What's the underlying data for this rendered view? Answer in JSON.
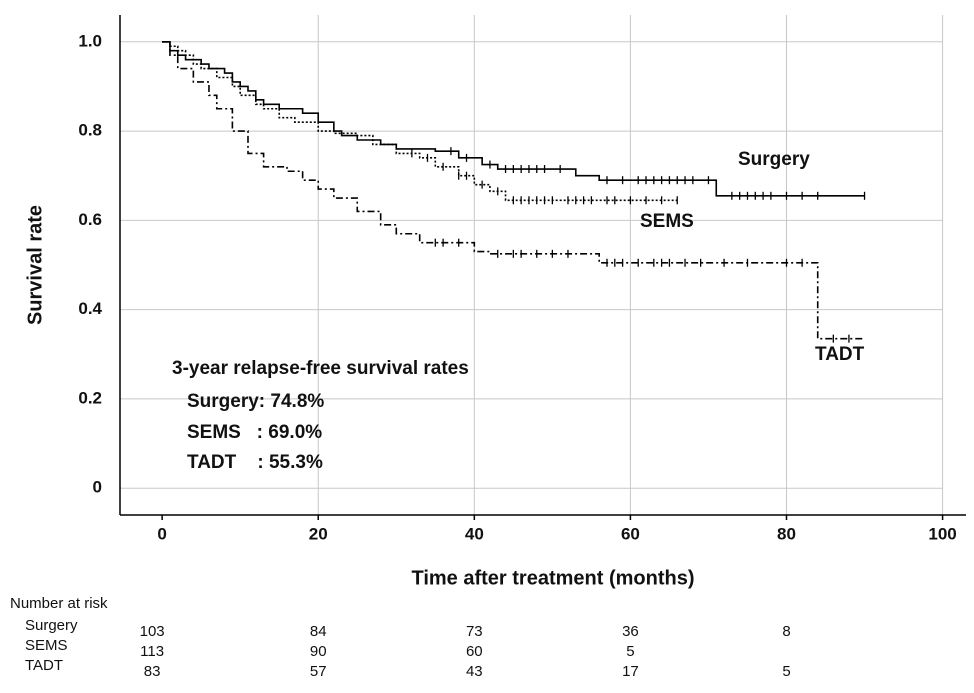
{
  "chart_data": {
    "type": "km",
    "xlabel": "Time after treatment (months)",
    "ylabel": "Survival rate",
    "xlim": [
      -5.4,
      103
    ],
    "ylim": [
      -0.06,
      1.06
    ],
    "xticks": [
      0,
      20,
      40,
      60,
      80,
      100
    ],
    "yticks": [
      0,
      0.2,
      0.4,
      0.6,
      0.8,
      {
        "value": 1,
        "label": "1.0"
      }
    ],
    "grid": true,
    "series": [
      {
        "name": "Surgery",
        "color": "#000000",
        "line_style": "solid",
        "x": [
          0,
          1,
          2,
          3,
          5,
          6,
          8,
          9,
          10,
          11,
          12,
          13,
          15,
          18,
          20,
          22,
          23,
          25,
          28,
          30,
          35,
          38,
          41,
          43,
          53,
          56,
          71,
          90
        ],
        "values": [
          1,
          0.98,
          0.97,
          0.96,
          0.95,
          0.94,
          0.93,
          0.91,
          0.9,
          0.89,
          0.87,
          0.86,
          0.85,
          0.84,
          0.82,
          0.8,
          0.79,
          0.78,
          0.77,
          0.76,
          0.755,
          0.74,
          0.725,
          0.715,
          0.7,
          0.69,
          0.655,
          0.655
        ],
        "censored_x": [
          37,
          39,
          42,
          44,
          45,
          46,
          47,
          48,
          49,
          51,
          57,
          59,
          61,
          62,
          63,
          64,
          65,
          66,
          67,
          68,
          70,
          73,
          74,
          75,
          76,
          77,
          78,
          80,
          82,
          84,
          90
        ],
        "censored_y": [
          0.755,
          0.74,
          0.725,
          0.715,
          0.715,
          0.715,
          0.715,
          0.715,
          0.715,
          0.715,
          0.69,
          0.69,
          0.69,
          0.69,
          0.69,
          0.69,
          0.69,
          0.69,
          0.69,
          0.69,
          0.69,
          0.655,
          0.655,
          0.655,
          0.655,
          0.655,
          0.655,
          0.655,
          0.655,
          0.655,
          0.655
        ]
      },
      {
        "name": "SEMS",
        "color": "#000000",
        "line_style": "dotted",
        "x": [
          0,
          1,
          2,
          3,
          4,
          5,
          7,
          9,
          10,
          12,
          13,
          15,
          17,
          20,
          22,
          25,
          27,
          30,
          33,
          35,
          38,
          40,
          42,
          44,
          66
        ],
        "values": [
          1,
          0.99,
          0.98,
          0.97,
          0.95,
          0.94,
          0.92,
          0.9,
          0.88,
          0.86,
          0.85,
          0.83,
          0.82,
          0.8,
          0.795,
          0.79,
          0.77,
          0.75,
          0.74,
          0.72,
          0.7,
          0.68,
          0.665,
          0.645,
          0.645
        ],
        "censored_x": [
          32,
          34,
          36,
          38,
          39,
          41,
          43,
          45,
          46,
          47,
          48,
          49,
          50,
          52,
          53,
          54,
          55,
          57,
          58,
          60,
          62,
          64,
          66
        ],
        "censored_y": [
          0.75,
          0.74,
          0.72,
          0.7,
          0.7,
          0.68,
          0.665,
          0.645,
          0.645,
          0.645,
          0.645,
          0.645,
          0.645,
          0.645,
          0.645,
          0.645,
          0.645,
          0.645,
          0.645,
          0.645,
          0.645,
          0.645,
          0.645
        ]
      },
      {
        "name": "TADT",
        "color": "#000000",
        "line_style": "dashdot",
        "x": [
          0,
          1,
          2,
          4,
          6,
          7,
          9,
          11,
          13,
          16,
          18,
          20,
          22,
          25,
          28,
          30,
          33,
          40,
          42,
          56,
          84,
          90
        ],
        "values": [
          1,
          0.97,
          0.94,
          0.91,
          0.88,
          0.85,
          0.8,
          0.75,
          0.72,
          0.71,
          0.69,
          0.67,
          0.65,
          0.62,
          0.59,
          0.57,
          0.55,
          0.53,
          0.525,
          0.505,
          0.335,
          0.335
        ],
        "censored_x": [
          35,
          36,
          38,
          43,
          45,
          46,
          48,
          50,
          52,
          57,
          58,
          59,
          61,
          63,
          64,
          65,
          67,
          69,
          72,
          75,
          80,
          82,
          86,
          88
        ],
        "censored_y": [
          0.55,
          0.55,
          0.55,
          0.525,
          0.525,
          0.525,
          0.525,
          0.525,
          0.525,
          0.505,
          0.505,
          0.505,
          0.505,
          0.505,
          0.505,
          0.505,
          0.505,
          0.505,
          0.505,
          0.505,
          0.505,
          0.505,
          0.335,
          0.335
        ]
      }
    ],
    "annotations": [
      "3-year relapse-free survival rates",
      "Surgery: 74.8%",
      "SEMS   : 69.0%",
      "TADT    : 55.3%"
    ],
    "risk_table": {
      "title": "Number at risk",
      "rows": [
        {
          "name": "Surgery",
          "values": [
            103,
            84,
            73,
            36,
            8
          ]
        },
        {
          "name": "SEMS",
          "values": [
            113,
            90,
            60,
            5,
            null
          ]
        },
        {
          "name": "TADT",
          "values": [
            83,
            57,
            43,
            17,
            5
          ]
        }
      ]
    }
  }
}
